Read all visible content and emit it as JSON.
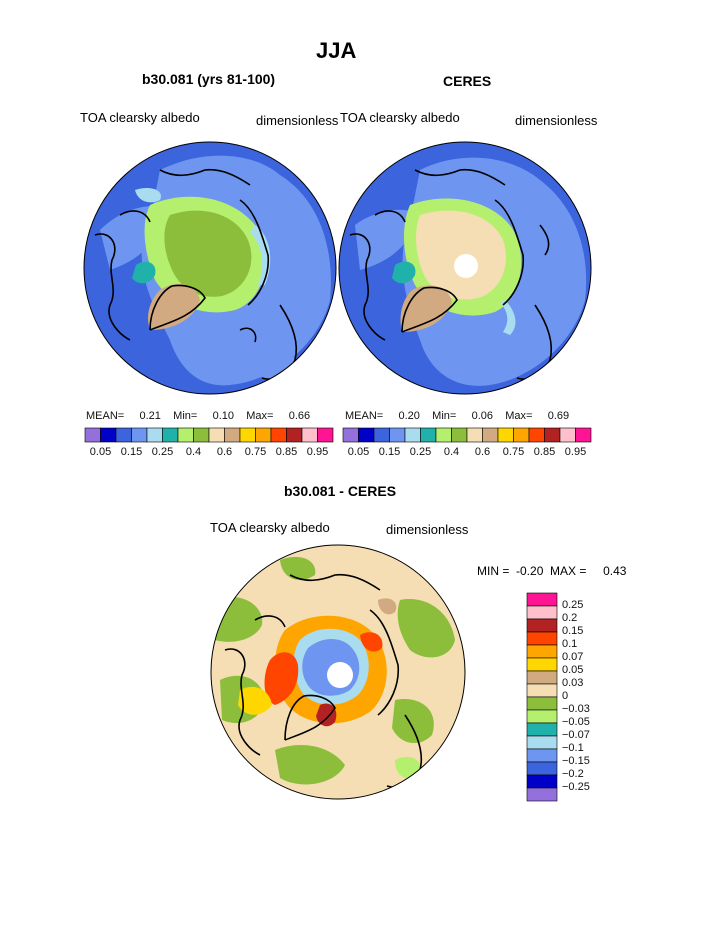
{
  "page": {
    "title": "JJA",
    "bottom_subtitle": "b30.081 - CERES"
  },
  "panels": [
    {
      "subtitle": "b30.081 (yrs 81-100)",
      "left_label": "TOA clearsky albedo",
      "right_label": "dimensionless",
      "stats": {
        "mean_label": "MEAN=",
        "mean": "0.21",
        "min_label": "Min=",
        "min": "0.10",
        "max_label": "Max=",
        "max": "0.66"
      }
    },
    {
      "subtitle": "CERES",
      "left_label": "TOA clearsky albedo",
      "right_label": "dimensionless",
      "stats": {
        "mean_label": "MEAN=",
        "mean": "0.20",
        "min_label": "Min=",
        "min": "0.06",
        "max_label": "Max=",
        "max": "0.69"
      }
    }
  ],
  "colorbar": {
    "colors": [
      "#9370db",
      "#0000c8",
      "#3c64dc",
      "#6e96f0",
      "#aadcf0",
      "#20b2aa",
      "#b4f06e",
      "#8cbe3c",
      "#f5deb3",
      "#d2aa82",
      "#ffd700",
      "#ffa500",
      "#ff4500",
      "#b22222",
      "#ffc0cb",
      "#ff1493"
    ],
    "labels": [
      "0.05",
      "0.15",
      "0.25",
      "0.4",
      "0.6",
      "0.75",
      "0.85",
      "0.95"
    ]
  },
  "diff_panel": {
    "left_label": "TOA clearsky albedo",
    "right_label": "dimensionless",
    "min_label": "MIN =",
    "min": "-0.20",
    "max_label": "MAX =",
    "max": "0.43",
    "legend": {
      "colors": [
        "#ff1493",
        "#ffc0cb",
        "#b22222",
        "#ff4500",
        "#ffa500",
        "#ffd700",
        "#d2aa82",
        "#f5deb3",
        "#8cbe3c",
        "#b4f06e",
        "#20b2aa",
        "#aadcf0",
        "#6e96f0",
        "#3c64dc",
        "#0000c8",
        "#9370db"
      ],
      "labels": [
        "0.25",
        "0.2",
        "0.15",
        "0.1",
        "0.07",
        "0.05",
        "0.03",
        "0",
        "−0.03",
        "−0.05",
        "−0.07",
        "−0.1",
        "−0.15",
        "−0.2",
        "−0.25"
      ]
    }
  }
}
